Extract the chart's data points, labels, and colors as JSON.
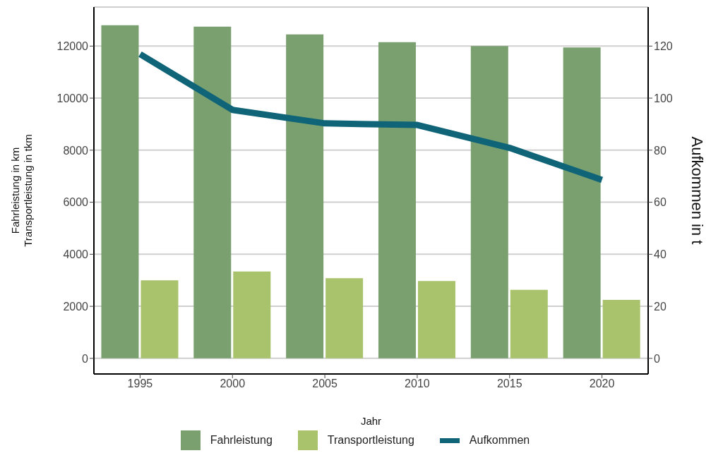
{
  "chart_data": {
    "type": "bar",
    "xlabel": "Jahr",
    "ylabel": "Fahrleistung in km\nTransportleistung in tkm",
    "y2label": "Aufkommen in t",
    "categories": [
      "1995",
      "2000",
      "2005",
      "2010",
      "2015",
      "2020"
    ],
    "series": [
      {
        "name": "Fahrleistung",
        "color": "#7aa06f",
        "values": [
          12800,
          12750,
          12450,
          12150,
          12000,
          11950
        ]
      },
      {
        "name": "Transportleistung",
        "color": "#a9c36c",
        "values": [
          3000,
          3340,
          3080,
          2975,
          2635,
          2245
        ]
      },
      {
        "name": "Aufkommen",
        "type": "line",
        "axis": "y2",
        "color": "#0f6478",
        "values": [
          116.9,
          95.5,
          90.3,
          89.7,
          80.9,
          68.6
        ]
      }
    ],
    "ylim": [
      -600,
      13500
    ],
    "yticks": [
      0,
      2000,
      4000,
      6000,
      8000,
      10000,
      12000
    ],
    "y2lim": [
      -6,
      135
    ],
    "y2ticks": [
      0,
      20,
      40,
      60,
      80,
      100,
      120
    ],
    "grid": "y",
    "legend": "bottom"
  }
}
